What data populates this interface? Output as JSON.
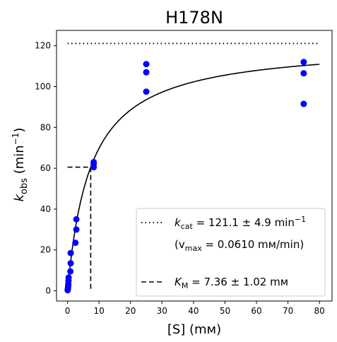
{
  "chart_data": {
    "type": "scatter",
    "title": "H178N",
    "xlabel": "[S] (mм)",
    "ylabel": "k_obs (min⁻¹)",
    "xlim": [
      -3.5,
      84
    ],
    "ylim": [
      -5,
      127.5
    ],
    "xticks": [
      0,
      10,
      20,
      30,
      40,
      50,
      60,
      70,
      80
    ],
    "yticks": [
      0,
      20,
      40,
      60,
      80,
      100,
      120
    ],
    "grid": false,
    "legend_position": "lower-right",
    "colors": {
      "points": "#0000ff",
      "fit": "#000000",
      "frame": "#000000"
    },
    "points": [
      {
        "x": 0.05,
        "y": 0.3
      },
      {
        "x": 0.1,
        "y": 0.8
      },
      {
        "x": 0.15,
        "y": 1.5
      },
      {
        "x": 0.2,
        "y": 2.5
      },
      {
        "x": 0.25,
        "y": 3.5
      },
      {
        "x": 0.3,
        "y": 5.0
      },
      {
        "x": 0.35,
        "y": 6.5
      },
      {
        "x": 0.9,
        "y": 9.5
      },
      {
        "x": 1.0,
        "y": 13.5
      },
      {
        "x": 1.0,
        "y": 18.5
      },
      {
        "x": 2.5,
        "y": 23.5
      },
      {
        "x": 2.8,
        "y": 30.0
      },
      {
        "x": 2.8,
        "y": 35.0
      },
      {
        "x": 8.3,
        "y": 60.5
      },
      {
        "x": 8.3,
        "y": 62.0
      },
      {
        "x": 8.3,
        "y": 63.0
      },
      {
        "x": 25,
        "y": 97.5
      },
      {
        "x": 25,
        "y": 107.0
      },
      {
        "x": 25,
        "y": 111.0
      },
      {
        "x": 75,
        "y": 91.5
      },
      {
        "x": 75,
        "y": 106.5
      },
      {
        "x": 75,
        "y": 112.0
      }
    ],
    "fit": {
      "model": "Michaelis-Menten",
      "kcat": 121.1,
      "km": 7.36,
      "x_range": [
        0,
        80
      ]
    },
    "kcat_line": {
      "y": 121.1,
      "x_range": [
        0,
        80
      ]
    },
    "km_marker": {
      "x": 7.36,
      "y": 60.55
    },
    "legend": {
      "kcat_label": "k",
      "kcat_sub": "cat",
      "kcat_value": " = 121.1 ± 4.9 min",
      "kcat_sup": "−1",
      "vmax_open": "(v",
      "vmax_sub": "max",
      "vmax_value": " = 0.0610 mм/min)",
      "km_label": "K",
      "km_sub": "M",
      "km_value": " = 7.36 ± 1.02 mм"
    },
    "ylabel_parts": {
      "k": "k",
      "sub": "obs",
      "unit": " (min",
      "sup": "−1",
      "close": ")"
    }
  }
}
